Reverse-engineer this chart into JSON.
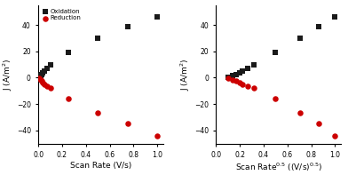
{
  "left_ox_x": [
    0.01,
    0.02,
    0.03,
    0.04,
    0.05,
    0.07,
    0.1,
    0.25,
    0.5,
    0.75,
    1.0
  ],
  "left_ox_y": [
    0.5,
    1.5,
    2.5,
    3.5,
    5.0,
    7.0,
    10.0,
    19.0,
    30.0,
    39.0,
    46.0
  ],
  "left_red_x": [
    0.01,
    0.02,
    0.03,
    0.04,
    0.05,
    0.07,
    0.1,
    0.25,
    0.5,
    0.75,
    1.0
  ],
  "left_red_y": [
    -0.5,
    -1.5,
    -2.5,
    -3.5,
    -5.0,
    -6.5,
    -8.0,
    -16.0,
    -27.0,
    -35.0,
    -44.0
  ],
  "right_ox_x": [
    0.1,
    0.141,
    0.173,
    0.2,
    0.224,
    0.265,
    0.316,
    0.5,
    0.707,
    0.866,
    1.0
  ],
  "right_ox_y": [
    0.5,
    1.5,
    2.5,
    3.5,
    5.0,
    7.0,
    10.0,
    19.0,
    30.0,
    39.0,
    46.0
  ],
  "right_red_x": [
    0.1,
    0.141,
    0.173,
    0.2,
    0.224,
    0.265,
    0.316,
    0.5,
    0.707,
    0.866,
    1.0
  ],
  "right_red_y": [
    -0.5,
    -1.5,
    -2.5,
    -3.5,
    -5.0,
    -6.5,
    -8.0,
    -16.0,
    -27.0,
    -35.0,
    -44.0
  ],
  "ox_color": "#1a1a1a",
  "red_color": "#cc0000",
  "ox_label": "Oxidation",
  "red_label": "Reduction",
  "ylabel": "J (A/m$^2$)",
  "left_xlabel": "Scan Rate (V/s)",
  "ylim": [
    -50,
    55
  ],
  "left_xlim": [
    0.0,
    1.05
  ],
  "right_xlim": [
    0.0,
    1.05
  ],
  "left_xticks": [
    0.0,
    0.2,
    0.4,
    0.6,
    0.8,
    1.0
  ],
  "right_xticks": [
    0.0,
    0.2,
    0.4,
    0.6,
    0.8,
    1.0
  ],
  "yticks": [
    -40,
    -20,
    0,
    20,
    40
  ],
  "marker_size_sq": 18,
  "marker_size_circ": 22
}
